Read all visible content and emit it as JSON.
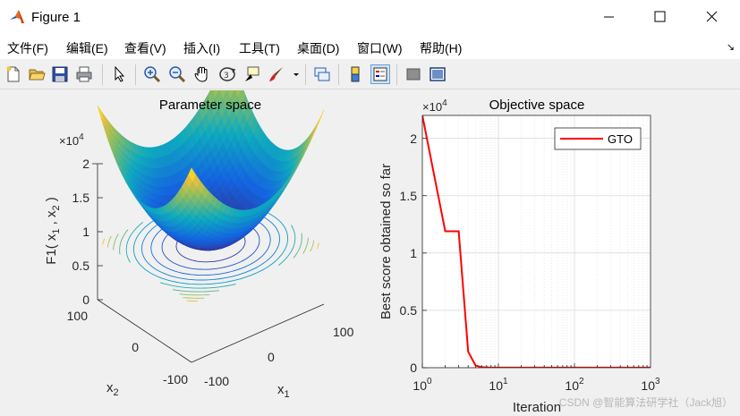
{
  "window": {
    "title": "Figure 1"
  },
  "menu": [
    "文件(F)",
    "编辑(E)",
    "查看(V)",
    "插入(I)",
    "工具(T)",
    "桌面(D)",
    "窗口(W)",
    "帮助(H)"
  ],
  "toolbar_icons": [
    "new-figure-icon",
    "open-file-icon",
    "save-icon",
    "print-icon",
    "pointer-icon",
    "zoom-in-icon",
    "zoom-out-icon",
    "pan-hand-icon",
    "rotate-3d-icon",
    "data-cursor-icon",
    "brush-icon",
    "brush-dropdown-icon",
    "link-plot-icon",
    "colorbar-icon",
    "legend-icon",
    "hide-plot-tools-icon",
    "show-plot-tools-icon"
  ],
  "chart_data": [
    {
      "type": "surface",
      "title": "Parameter space",
      "xlabel": "x_1",
      "ylabel": "x_2",
      "zlabel": "F1( x_1 , x_2 )",
      "function": "x_1^2 + x_2^2",
      "xlim": [
        -100,
        100
      ],
      "ylim": [
        -100,
        100
      ],
      "zlim": [
        0,
        20000
      ],
      "x_ticks": [
        "-100",
        "0",
        "100"
      ],
      "y_ticks": [
        "-100",
        "0",
        "100"
      ],
      "z_ticks": [
        "0",
        "0.5",
        "1",
        "1.5",
        "2"
      ],
      "z_exponent": "×10^4",
      "grid": false,
      "contour_on_floor": true,
      "colormap": "parula",
      "colors": {
        "low": "#352a87",
        "mid": "#1ea7b7",
        "high": "#f9fb0e"
      }
    },
    {
      "type": "line",
      "title": "Objective space",
      "xlabel": "Iteration",
      "ylabel": "Best score obtained so far",
      "xscale": "log",
      "xlim": [
        1,
        1000
      ],
      "ylim": [
        0,
        22000
      ],
      "x_ticks": [
        "10^0",
        "10^1",
        "10^2",
        "10^3"
      ],
      "y_ticks": [
        "0",
        "0.5",
        "1",
        "1.5",
        "2"
      ],
      "y_exponent": "×10^4",
      "grid": true,
      "legend_position": "top-right",
      "series": [
        {
          "name": "GTO",
          "color": "#ff0000",
          "x": [
            1,
            2,
            3,
            4,
            5,
            6,
            8,
            1000
          ],
          "y": [
            22000,
            11900,
            11900,
            1400,
            200,
            50,
            10,
            5
          ]
        }
      ]
    }
  ],
  "watermark": "CSDN @智能算法研学社（Jack旭）"
}
